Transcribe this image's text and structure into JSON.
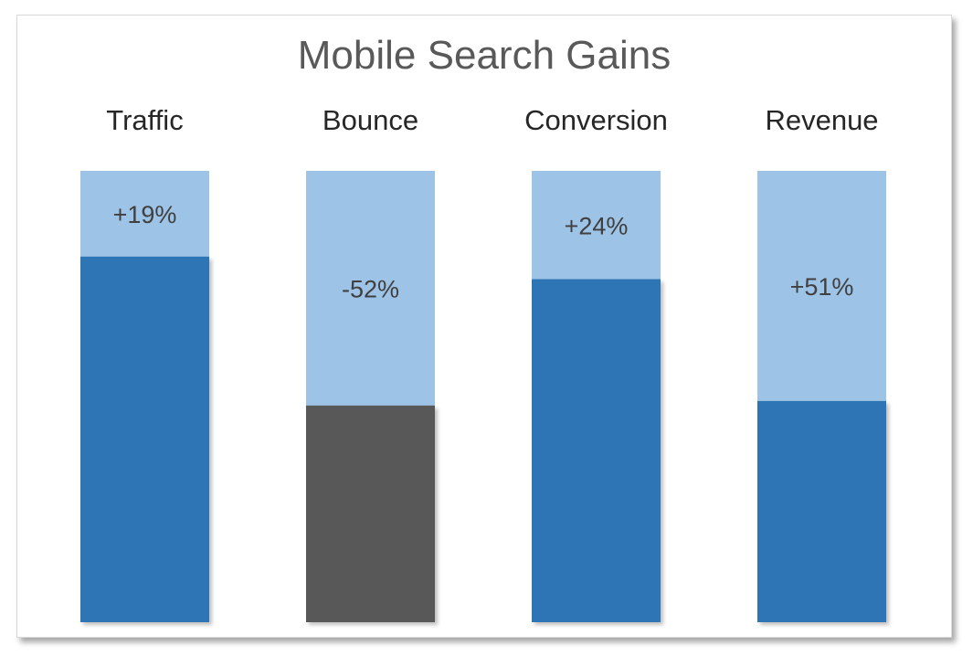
{
  "chart_data": {
    "type": "bar",
    "title": "Mobile Search Gains",
    "categories": [
      "Traffic",
      "Bounce",
      "Conversion",
      "Revenue"
    ],
    "series": [
      {
        "values": [
          1.0,
          1.0,
          1.0,
          1.0
        ]
      },
      {
        "values": [
          0.81,
          0.48,
          0.76,
          0.49
        ]
      }
    ],
    "data_labels": [
      "+19%",
      "-52%",
      "+24%",
      "+51%"
    ],
    "xlabel": "",
    "ylabel": "",
    "ylim": [
      0,
      1
    ],
    "grid": false,
    "legend": "none",
    "colors": {
      "background_bar": "#9dc3e6",
      "positive_bar": "#2e75b6",
      "negative_bar": "#595959",
      "title": "#595959",
      "category_label": "#262626",
      "data_label": "#404040"
    }
  }
}
